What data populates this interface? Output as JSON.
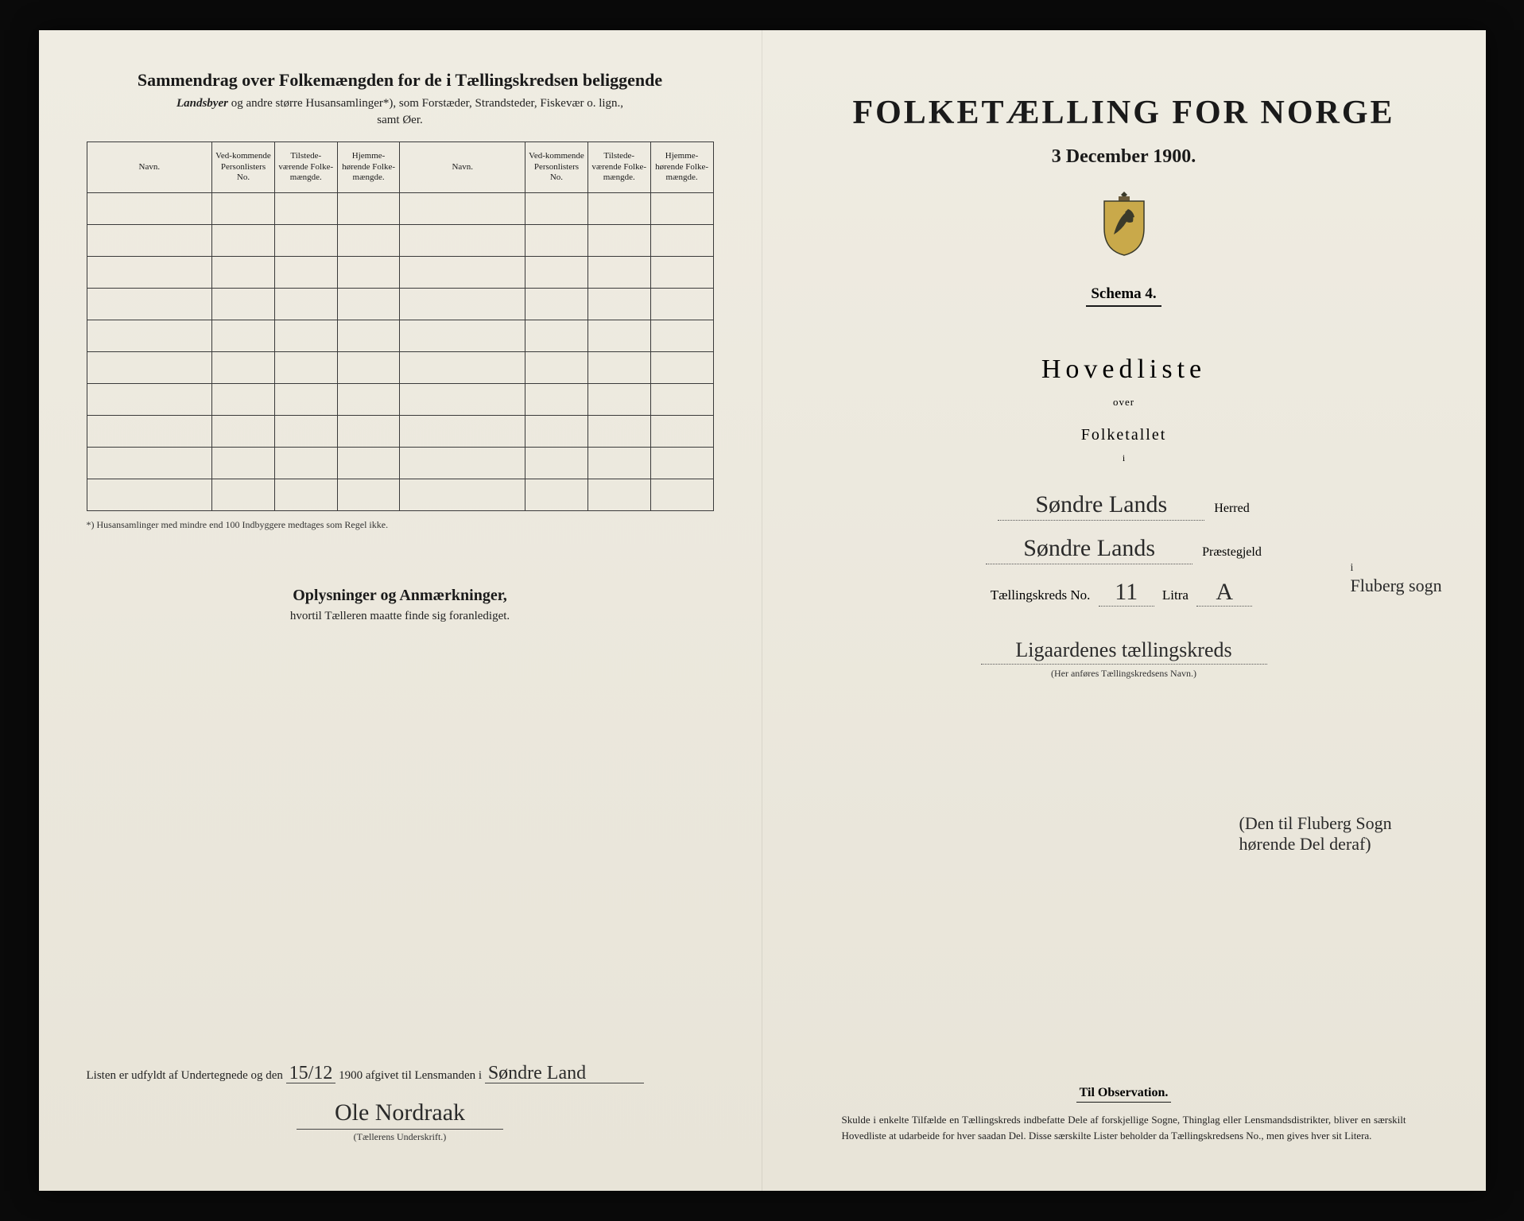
{
  "left": {
    "title": "Sammendrag over Folkemængden for de i Tællingskredsen beliggende",
    "subtitle_prefix_em": "Landsbyer",
    "subtitle_rest": " og andre større Husansamlinger*), som Forstæder, Strandsteder, Fiskevær o. lign.,",
    "subtitle_line2": "samt Øer.",
    "table": {
      "headers": [
        "Navn.",
        "Ved-kommende Personlisters No.",
        "Tilstede-værende Folke-mængde.",
        "Hjemme-hørende Folke-mængde.",
        "Navn.",
        "Ved-kommende Personlisters No.",
        "Tilstede-værende Folke-mængde.",
        "Hjemme-hørende Folke-mængde."
      ],
      "row_count": 10
    },
    "footnote": "*) Husansamlinger med mindre end 100 Indbyggere medtages som Regel ikke.",
    "oplys_title": "Oplysninger og Anmærkninger,",
    "oplys_sub": "hvortil Tælleren maatte finde sig foranlediget.",
    "bottom": {
      "text_before": "Listen er udfyldt af Undertegnede og den ",
      "date_hand": "15/12",
      "text_mid": " 1900 afgivet til Lensmanden i ",
      "lensmand_hand": "Søndre Land",
      "signature": "Ole Nordraak",
      "sig_caption": "(Tællerens Underskrift.)"
    }
  },
  "right": {
    "title": "FOLKETÆLLING FOR NORGE",
    "date": "3 December 1900.",
    "schema": "Schema 4.",
    "hovedliste": "Hovedliste",
    "over": "over",
    "folketallet": "Folketallet",
    "i": "i",
    "herred_hand": "Søndre Lands",
    "herred_label": "Herred",
    "prestegjeld_hand": "Søndre Lands",
    "prestegjeld_label": "Præstegjeld",
    "brace_note_i": "i",
    "brace_note": "Fluberg sogn",
    "tkreds_label": "Tællingskreds No.",
    "tkreds_no": "11",
    "litra_label": "Litra",
    "litra_val": "A",
    "kreds_name_hand": "Ligaardenes tællingskreds",
    "kreds_name_caption": "(Her anføres Tællingskredsens Navn.)",
    "hand_paren": "(Den til Fluberg Sogn hørende Del deraf)",
    "obs_title": "Til Observation.",
    "obs_body": "Skulde i enkelte Tilfælde en Tællingskreds indbefatte Dele af forskjellige Sogne, Thinglag eller Lensmandsdistrikter, bliver en særskilt Hovedliste at udarbeide for hver saadan Del. Disse særskilte Lister beholder da Tællingskredsens No., men gives hver sit Litera."
  },
  "colors": {
    "paper": "#efece2",
    "ink": "#1a1a1a",
    "hand": "#2a2a2a",
    "border": "#3a3a3a"
  }
}
